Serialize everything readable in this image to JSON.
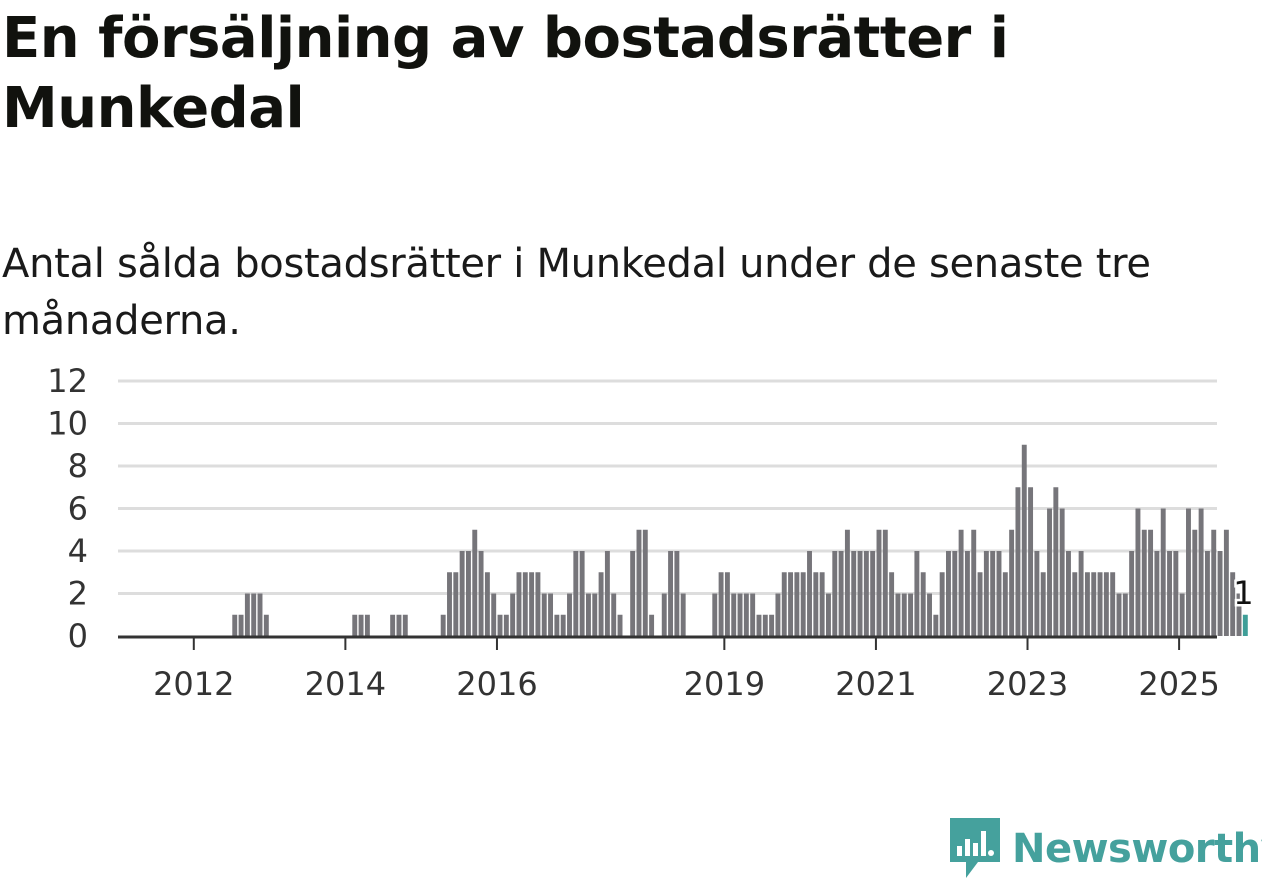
{
  "title": "En försäljning av bostadsrätter i Munkedal",
  "subtitle": "Antal sålda bostadsrätter i Munkedal under de senaste tre månaderna.",
  "brand": {
    "name": "Newsworthy",
    "color": "#45a19d",
    "icon": "newsworthy-logo-icon"
  },
  "chart_data": {
    "type": "bar",
    "title": "",
    "xlabel": "",
    "ylabel": "",
    "ylim": [
      0,
      12
    ],
    "yticks": [
      "0",
      "2",
      "4",
      "6",
      "8",
      "10",
      "12"
    ],
    "xticks": [
      {
        "label": "2012",
        "date": "2012-01"
      },
      {
        "label": "2014",
        "date": "2014-01"
      },
      {
        "label": "2016",
        "date": "2016-01"
      },
      {
        "label": "2019",
        "date": "2019-01"
      },
      {
        "label": "2021",
        "date": "2021-01"
      },
      {
        "label": "2023",
        "date": "2023-01"
      },
      {
        "label": "2025",
        "date": "2025-01"
      }
    ],
    "grid": true,
    "bar_color": "#76757a",
    "highlight_color": "#3f9e98",
    "highlight_label": "1",
    "x_start": "2011-01",
    "x_end": "2025-07",
    "series": [
      {
        "start": "2011-10",
        "values": [
          0,
          0,
          0,
          0,
          0,
          0,
          0,
          0,
          0,
          1,
          1,
          2,
          2,
          2,
          1,
          0,
          0,
          0,
          0,
          0,
          0,
          0,
          0,
          0,
          0,
          0,
          0,
          0,
          1,
          1,
          1,
          0,
          0,
          0,
          1,
          1,
          1,
          0,
          0,
          0,
          0,
          0,
          1,
          3,
          3,
          4,
          4,
          5,
          4,
          3,
          2,
          1,
          1,
          2,
          3,
          3,
          3,
          3,
          2,
          2,
          1,
          1,
          2,
          4,
          4,
          2,
          2,
          3,
          4,
          2,
          1,
          0,
          4,
          5,
          5,
          1,
          0,
          2,
          4,
          4,
          2,
          0,
          0,
          0,
          0,
          2,
          3,
          3,
          2,
          2,
          2,
          2,
          1,
          1,
          1,
          2,
          3,
          3,
          3,
          3,
          4,
          3,
          3,
          2,
          4,
          4,
          5,
          4,
          4,
          4,
          4,
          5,
          5,
          3,
          2,
          2,
          2,
          4,
          3,
          2,
          1,
          3,
          4,
          4,
          5,
          4,
          5,
          3,
          4,
          4,
          4,
          3,
          5,
          7,
          9,
          7,
          4,
          3,
          6,
          7,
          6,
          4,
          3,
          4,
          3,
          3,
          3,
          3,
          3,
          2,
          2,
          4,
          6,
          5,
          5,
          4,
          6,
          4,
          4,
          2,
          6,
          5,
          6,
          4,
          5,
          4,
          5,
          3,
          2,
          1
        ]
      }
    ]
  }
}
